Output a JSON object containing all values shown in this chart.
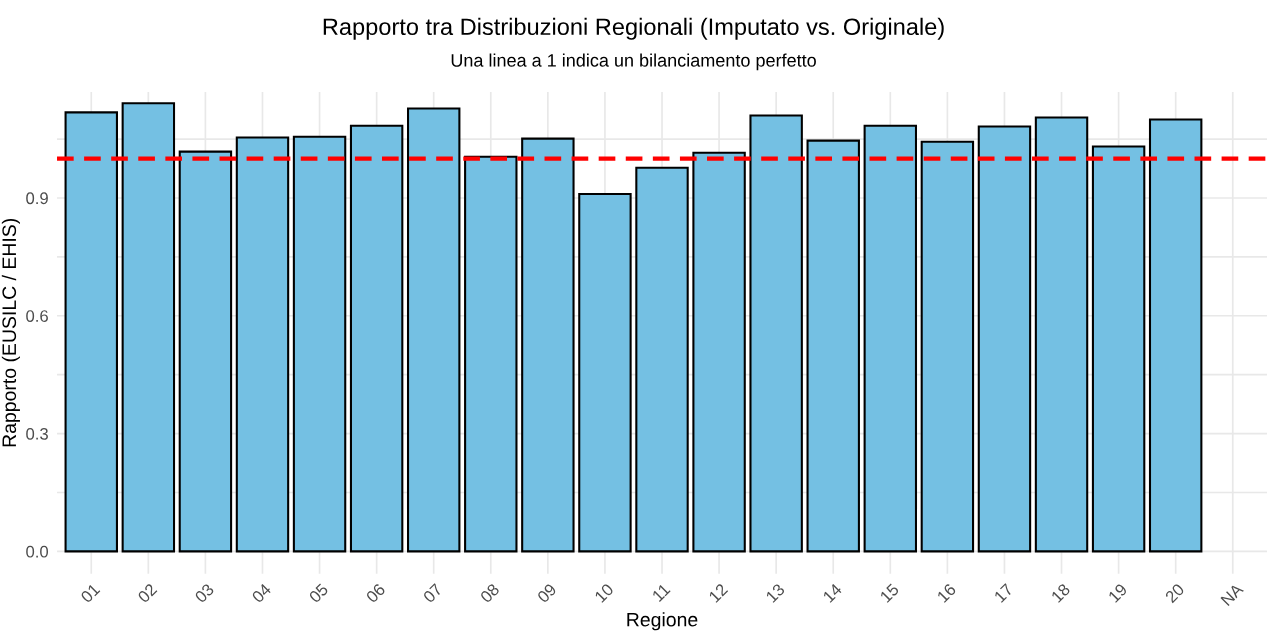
{
  "chart_data": {
    "type": "bar",
    "title": "Rapporto tra Distribuzioni Regionali (Imputato vs. Originale)",
    "subtitle": "Una linea a 1 indica un bilanciamento perfetto",
    "xlabel": "Regione",
    "ylabel": "Rapporto (EUSILC / EHIS)",
    "categories": [
      "01",
      "02",
      "03",
      "04",
      "05",
      "06",
      "07",
      "08",
      "09",
      "10",
      "11",
      "12",
      "13",
      "14",
      "15",
      "16",
      "17",
      "18",
      "19",
      "20",
      "NA"
    ],
    "values": [
      1.118,
      1.141,
      1.018,
      1.054,
      1.056,
      1.084,
      1.128,
      1.005,
      1.051,
      0.91,
      0.977,
      1.015,
      1.11,
      1.046,
      1.084,
      1.043,
      1.082,
      1.105,
      1.031,
      1.1,
      null
    ],
    "color": "#74c0e3",
    "ylim": [
      -0.057,
      1.17
    ],
    "yticks": [
      {
        "value": 0.0,
        "label": "0.0"
      },
      {
        "value": 0.15,
        "label": null
      },
      {
        "value": 0.3,
        "label": "0.3"
      },
      {
        "value": 0.45,
        "label": null
      },
      {
        "value": 0.6,
        "label": "0.6"
      },
      {
        "value": 0.75,
        "label": null
      },
      {
        "value": 0.9,
        "label": "0.9"
      },
      {
        "value": 1.05,
        "label": null
      }
    ],
    "ref_lines": [
      {
        "axis": "y",
        "value": 1,
        "color": "#ff0000",
        "line_style": "dashed"
      }
    ],
    "grid": true,
    "legend": false
  }
}
